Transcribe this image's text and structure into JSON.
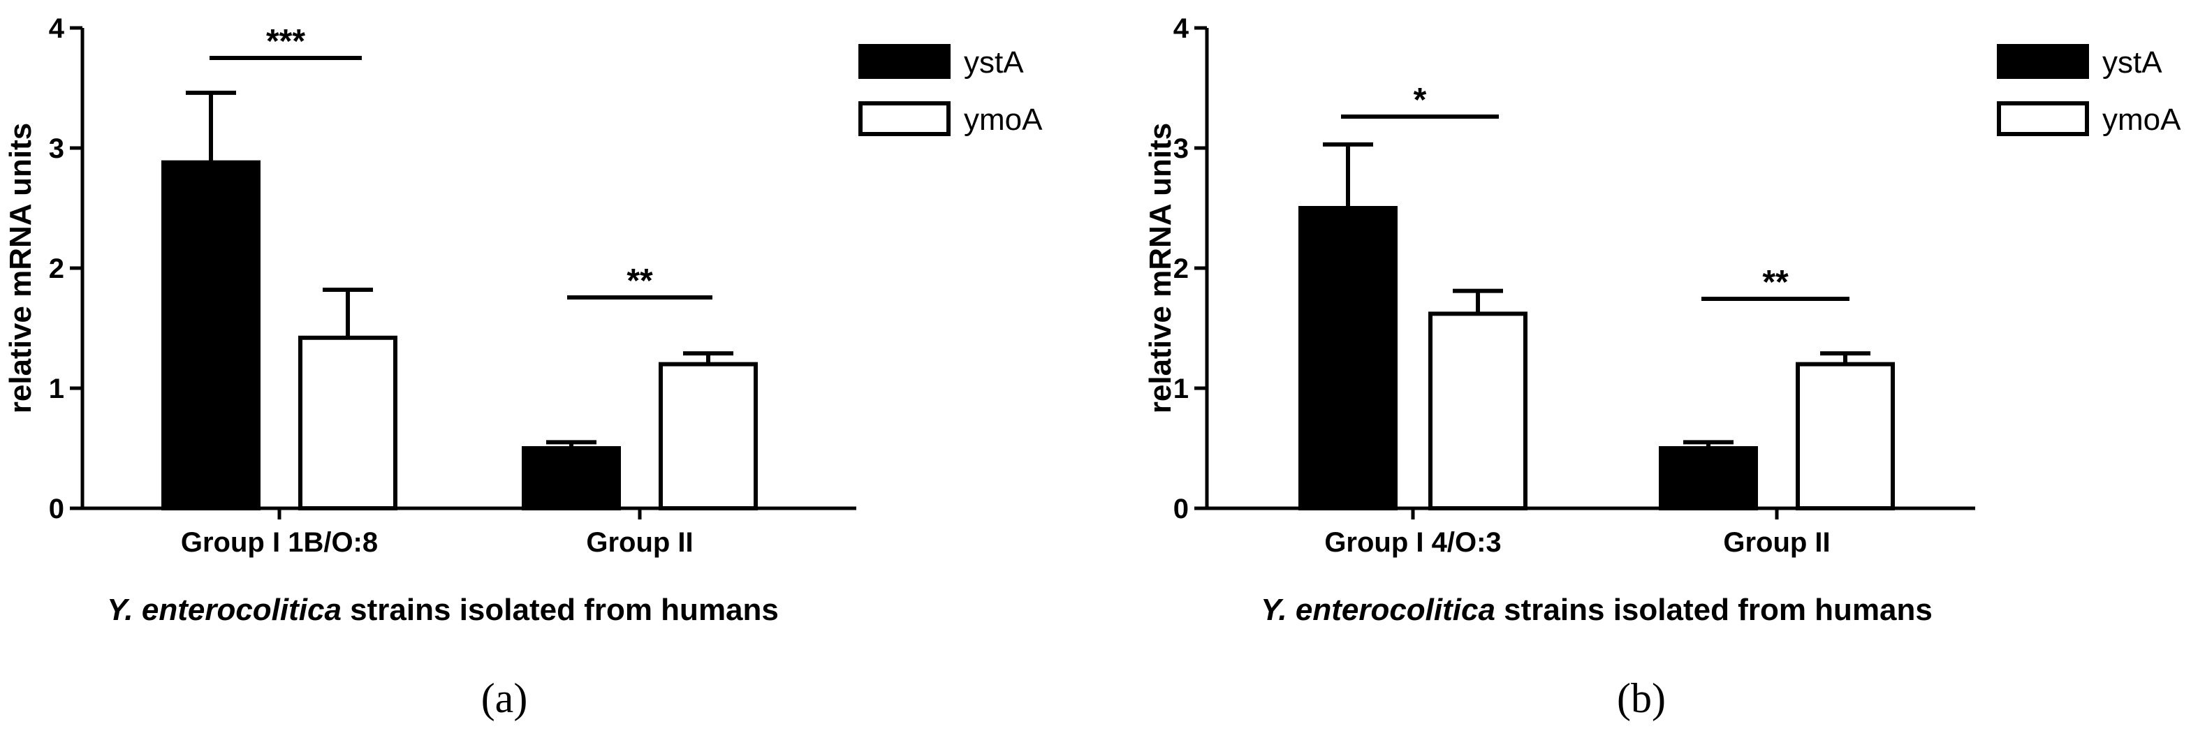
{
  "chart_data": [
    {
      "type": "bar",
      "panel_label": "(a)",
      "ylabel": "relative mRNA units",
      "xlabel_italic": "Y. enterocolitica",
      "xlabel_rest": " strains isolated from humans",
      "ylim": [
        0,
        4
      ],
      "yticks": [
        "0",
        "1",
        "2",
        "3",
        "4"
      ],
      "categories": [
        "Group I 1B/O:8",
        "Group II"
      ],
      "series": [
        {
          "name": "ystA",
          "color": "#000000",
          "values": [
            2.88,
            0.5
          ],
          "errors": [
            0.58,
            0.05
          ]
        },
        {
          "name": "ymoA",
          "color": "#ffffff",
          "values": [
            1.42,
            1.2
          ],
          "errors": [
            0.4,
            0.09
          ]
        }
      ],
      "significance": [
        "***",
        "**"
      ],
      "legend_position": "top-right"
    },
    {
      "type": "bar",
      "panel_label": "(b)",
      "ylabel": "relative mRNA units",
      "xlabel_italic": "Y. enterocolitica",
      "xlabel_rest": " strains isolated from humans",
      "ylim": [
        0,
        4
      ],
      "yticks": [
        "0",
        "1",
        "2",
        "3",
        "4"
      ],
      "categories": [
        "Group I 4/O:3",
        "Group II"
      ],
      "series": [
        {
          "name": "ystA",
          "color": "#000000",
          "values": [
            2.5,
            0.5
          ],
          "errors": [
            0.53,
            0.05
          ]
        },
        {
          "name": "ymoA",
          "color": "#ffffff",
          "values": [
            1.62,
            1.2
          ],
          "errors": [
            0.19,
            0.09
          ]
        }
      ],
      "significance": [
        "*",
        "**"
      ],
      "legend_position": "top-right"
    }
  ]
}
